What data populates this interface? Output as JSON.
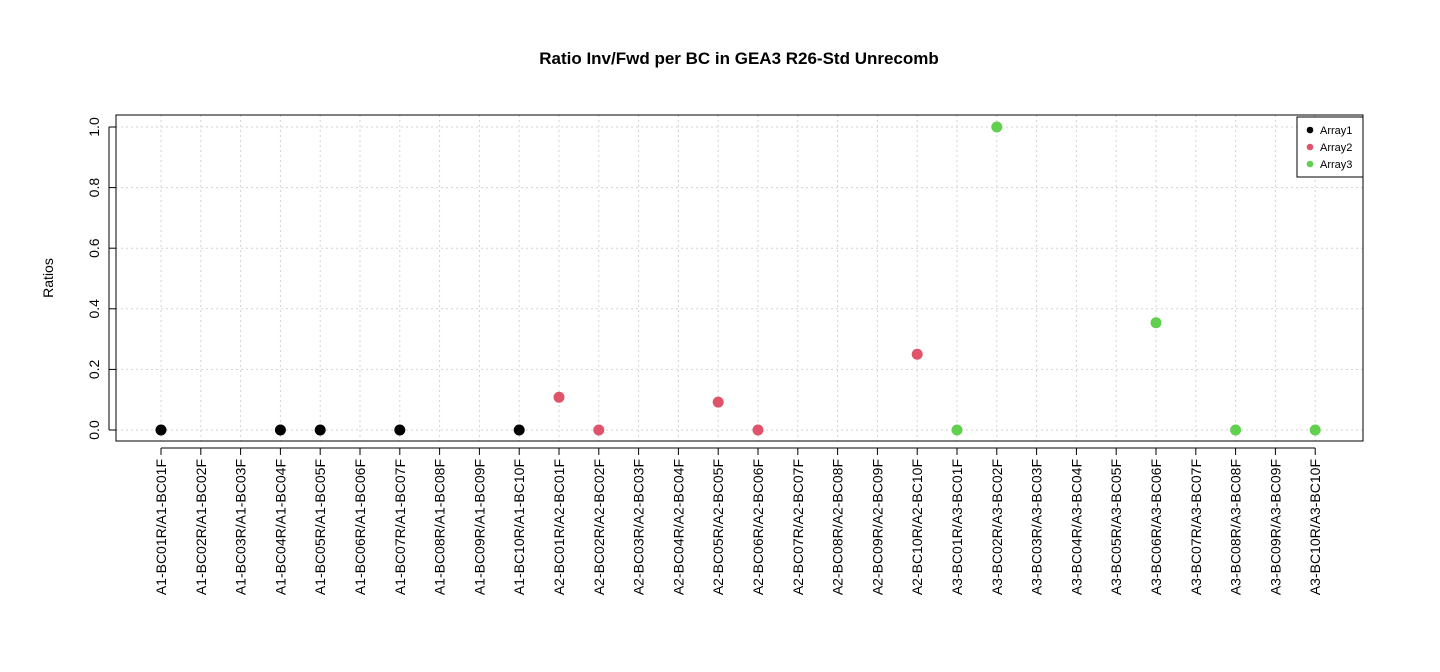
{
  "chart_data": {
    "type": "scatter",
    "title": "Ratio Inv/Fwd per BC in GEA3 R26-Std Unrecomb",
    "xlabel": "",
    "ylabel": "Ratios",
    "ylim": [
      0,
      1
    ],
    "yticks": [
      "0.0",
      "0.2",
      "0.4",
      "0.6",
      "0.8",
      "1.0"
    ],
    "grid": true,
    "legend_position": "top-right",
    "categories": [
      "A1-BC01R/A1-BC01F",
      "A1-BC02R/A1-BC02F",
      "A1-BC03R/A1-BC03F",
      "A1-BC04R/A1-BC04F",
      "A1-BC05R/A1-BC05F",
      "A1-BC06R/A1-BC06F",
      "A1-BC07R/A1-BC07F",
      "A1-BC08R/A1-BC08F",
      "A1-BC09R/A1-BC09F",
      "A1-BC10R/A1-BC10F",
      "A2-BC01R/A2-BC01F",
      "A2-BC02R/A2-BC02F",
      "A2-BC03R/A2-BC03F",
      "A2-BC04R/A2-BC04F",
      "A2-BC05R/A2-BC05F",
      "A2-BC06R/A2-BC06F",
      "A2-BC07R/A2-BC07F",
      "A2-BC08R/A2-BC08F",
      "A2-BC09R/A2-BC09F",
      "A2-BC10R/A2-BC10F",
      "A3-BC01R/A3-BC01F",
      "A3-BC02R/A3-BC02F",
      "A3-BC03R/A3-BC03F",
      "A3-BC04R/A3-BC04F",
      "A3-BC05R/A3-BC05F",
      "A3-BC06R/A3-BC06F",
      "A3-BC07R/A3-BC07F",
      "A3-BC08R/A3-BC08F",
      "A3-BC09R/A3-BC09F",
      "A3-BC10R/A3-BC10F"
    ],
    "series": [
      {
        "name": "Array1",
        "color": "#000000",
        "values": [
          0,
          null,
          null,
          0,
          0,
          null,
          0,
          null,
          null,
          0,
          null,
          null,
          null,
          null,
          null,
          null,
          null,
          null,
          null,
          null,
          null,
          null,
          null,
          null,
          null,
          null,
          null,
          null,
          null,
          null
        ]
      },
      {
        "name": "Array2",
        "color": "#DF536B",
        "values": [
          null,
          null,
          null,
          null,
          null,
          null,
          null,
          null,
          null,
          null,
          0.108,
          0,
          null,
          null,
          0.092,
          0,
          null,
          null,
          null,
          0.25,
          null,
          null,
          null,
          null,
          null,
          null,
          null,
          null,
          null,
          null
        ]
      },
      {
        "name": "Array3",
        "color": "#61D04F",
        "values": [
          null,
          null,
          null,
          null,
          null,
          null,
          null,
          null,
          null,
          null,
          null,
          null,
          null,
          null,
          null,
          null,
          null,
          null,
          null,
          null,
          0,
          1.0,
          null,
          null,
          null,
          0.354,
          null,
          0,
          null,
          0
        ]
      }
    ]
  }
}
